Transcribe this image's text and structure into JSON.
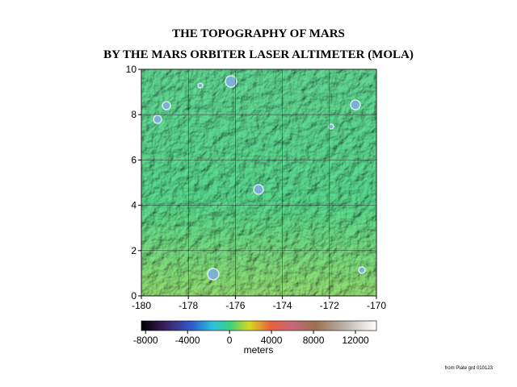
{
  "title": [
    "THE TOPOGRAPHY OF MARS",
    "BY THE MARS ORBITER LASER ALTIMETER (MOLA)"
  ],
  "map": {
    "xlim": [
      -180,
      -170
    ],
    "xticks": [
      -180,
      -178,
      -176,
      -174,
      -172,
      -170
    ],
    "ylim": [
      0,
      10
    ],
    "yticks": [
      0,
      2,
      4,
      6,
      8,
      10
    ],
    "grid": true
  },
  "colorbar": {
    "clim": [
      -8400,
      14000
    ],
    "ticks": [
      -8000,
      -4000,
      0,
      4000,
      8000,
      12000
    ],
    "label": "meters"
  },
  "footnote": "from Plate grd 010123"
}
